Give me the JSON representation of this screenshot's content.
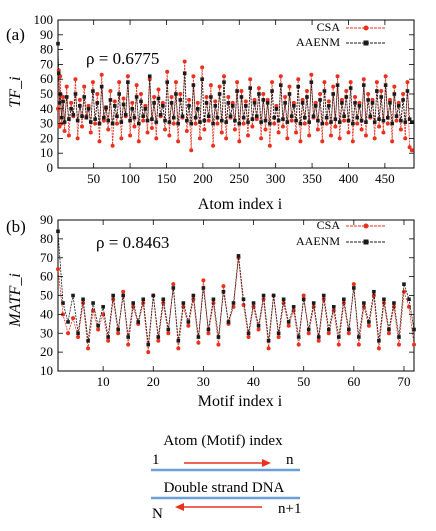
{
  "chart_data": [
    {
      "type": "line",
      "panel_label": "(a)",
      "annotation": "ρ = 0.6775",
      "xlabel": "Atom index i",
      "ylabel": "TF_i",
      "xlim": [
        1,
        490
      ],
      "ylim": [
        0,
        100
      ],
      "xticks": [
        50,
        100,
        150,
        200,
        250,
        300,
        350,
        400,
        450
      ],
      "yticks": [
        0,
        10,
        20,
        30,
        40,
        50,
        60,
        70,
        80,
        90,
        100
      ],
      "legend_position": "top-right",
      "series": [
        {
          "name": "CSA",
          "color": "#e8311f",
          "marker": "circle",
          "x": [
            1,
            2,
            3,
            4,
            6,
            8,
            10,
            13,
            16,
            19,
            22,
            25,
            28,
            31,
            34,
            37,
            40,
            43,
            46,
            49,
            52,
            55,
            58,
            61,
            64,
            67,
            70,
            73,
            76,
            79,
            82,
            85,
            88,
            91,
            94,
            97,
            100,
            103,
            106,
            109,
            112,
            115,
            118,
            121,
            124,
            127,
            130,
            133,
            136,
            139,
            142,
            145,
            148,
            151,
            154,
            157,
            160,
            163,
            166,
            169,
            172,
            175,
            178,
            181,
            184,
            187,
            190,
            193,
            196,
            199,
            202,
            205,
            208,
            211,
            214,
            217,
            220,
            223,
            226,
            229,
            232,
            235,
            238,
            241,
            244,
            247,
            250,
            253,
            256,
            259,
            262,
            265,
            268,
            271,
            274,
            277,
            280,
            283,
            286,
            289,
            292,
            295,
            298,
            301,
            304,
            307,
            310,
            313,
            316,
            319,
            322,
            325,
            328,
            331,
            334,
            337,
            340,
            343,
            346,
            349,
            352,
            355,
            358,
            361,
            364,
            367,
            370,
            373,
            376,
            379,
            382,
            385,
            388,
            391,
            394,
            397,
            400,
            403,
            406,
            409,
            412,
            415,
            418,
            421,
            424,
            427,
            430,
            433,
            436,
            439,
            442,
            445,
            448,
            451,
            454,
            457,
            460,
            463,
            466,
            469,
            472,
            475,
            478,
            481,
            484,
            487
          ],
          "values": [
            40,
            66,
            28,
            62,
            30,
            48,
            25,
            55,
            22,
            44,
            35,
            60,
            20,
            46,
            28,
            55,
            35,
            42,
            24,
            58,
            30,
            50,
            18,
            63,
            32,
            40,
            26,
            52,
            15,
            45,
            30,
            58,
            20,
            47,
            35,
            62,
            22,
            44,
            28,
            56,
            18,
            50,
            32,
            42,
            24,
            60,
            27,
            48,
            20,
            53,
            35,
            44,
            26,
            65,
            22,
            48,
            30,
            58,
            18,
            50,
            34,
            72,
            25,
            46,
            12,
            62,
            30,
            44,
            20,
            68,
            26,
            48,
            32,
            56,
            15,
            45,
            30,
            55,
            24,
            62,
            20,
            48,
            34,
            44,
            26,
            58,
            18,
            52,
            30,
            45,
            22,
            60,
            28,
            46,
            33,
            54,
            20,
            50,
            26,
            46,
            15,
            58,
            30,
            42,
            24,
            62,
            28,
            48,
            20,
            55,
            32,
            44,
            24,
            60,
            18,
            46,
            30,
            52,
            22,
            63,
            34,
            44,
            26,
            50,
            18,
            58,
            30,
            45,
            22,
            55,
            28,
            62,
            20,
            46,
            32,
            52,
            24,
            58,
            18,
            48,
            30,
            44,
            26,
            60,
            22,
            50,
            34,
            46,
            20,
            58,
            28,
            52,
            24,
            62,
            30,
            46,
            18,
            55,
            32,
            44,
            26,
            50,
            20,
            58,
            14,
            12
          ]
        },
        {
          "name": "AAENM",
          "color": "#1a1a1a",
          "marker": "square",
          "x": [
            1,
            2,
            3,
            4,
            6,
            8,
            10,
            13,
            16,
            19,
            22,
            25,
            28,
            31,
            34,
            37,
            40,
            43,
            46,
            49,
            52,
            55,
            58,
            61,
            64,
            67,
            70,
            73,
            76,
            79,
            82,
            85,
            88,
            91,
            94,
            97,
            100,
            103,
            106,
            109,
            112,
            115,
            118,
            121,
            124,
            127,
            130,
            133,
            136,
            139,
            142,
            145,
            148,
            151,
            154,
            157,
            160,
            163,
            166,
            169,
            172,
            175,
            178,
            181,
            184,
            187,
            190,
            193,
            196,
            199,
            202,
            205,
            208,
            211,
            214,
            217,
            220,
            223,
            226,
            229,
            232,
            235,
            238,
            241,
            244,
            247,
            250,
            253,
            256,
            259,
            262,
            265,
            268,
            271,
            274,
            277,
            280,
            283,
            286,
            289,
            292,
            295,
            298,
            301,
            304,
            307,
            310,
            313,
            316,
            319,
            322,
            325,
            328,
            331,
            334,
            337,
            340,
            343,
            346,
            349,
            352,
            355,
            358,
            361,
            364,
            367,
            370,
            373,
            376,
            379,
            382,
            385,
            388,
            391,
            394,
            397,
            400,
            403,
            406,
            409,
            412,
            415,
            418,
            421,
            424,
            427,
            430,
            433,
            436,
            439,
            442,
            445,
            448,
            451,
            454,
            457,
            460,
            463,
            466,
            469,
            472,
            475,
            478,
            481,
            484,
            487
          ],
          "values": [
            84,
            64,
            44,
            50,
            34,
            45,
            31,
            48,
            33,
            40,
            36,
            50,
            32,
            42,
            35,
            48,
            34,
            40,
            31,
            52,
            33,
            44,
            30,
            55,
            34,
            41,
            32,
            46,
            30,
            42,
            35,
            50,
            31,
            43,
            36,
            58,
            32,
            40,
            34,
            48,
            30,
            45,
            35,
            40,
            32,
            62,
            33,
            44,
            31,
            47,
            36,
            42,
            32,
            58,
            31,
            44,
            34,
            50,
            30,
            46,
            35,
            64,
            32,
            42,
            30,
            56,
            34,
            40,
            31,
            60,
            32,
            44,
            35,
            48,
            30,
            42,
            34,
            50,
            32,
            58,
            31,
            44,
            35,
            42,
            32,
            52,
            30,
            48,
            34,
            42,
            31,
            54,
            33,
            44,
            35,
            50,
            31,
            46,
            32,
            44,
            30,
            52,
            34,
            40,
            32,
            56,
            33,
            44,
            31,
            50,
            35,
            42,
            32,
            55,
            30,
            44,
            34,
            48,
            31,
            58,
            35,
            42,
            32,
            46,
            30,
            52,
            34,
            42,
            31,
            50,
            33,
            56,
            31,
            44,
            35,
            48,
            32,
            54,
            30,
            44,
            34,
            42,
            32,
            56,
            31,
            46,
            35,
            44,
            31,
            52,
            33,
            48,
            32,
            56,
            34,
            44,
            30,
            50,
            35,
            42,
            32,
            46,
            31,
            52,
            33,
            31
          ]
        }
      ]
    },
    {
      "type": "line",
      "panel_label": "(b)",
      "annotation": "ρ = 0.8463",
      "xlabel": "Motif index i",
      "ylabel": "MATF_i",
      "xlim": [
        1,
        72
      ],
      "ylim": [
        10,
        90
      ],
      "xticks": [
        10,
        20,
        30,
        40,
        50,
        60,
        70
      ],
      "yticks": [
        10,
        20,
        30,
        40,
        50,
        60,
        70,
        80,
        90
      ],
      "legend_position": "top-right",
      "series": [
        {
          "name": "CSA",
          "color": "#e8311f",
          "marker": "circle",
          "x": [
            1,
            2,
            3,
            4,
            5,
            6,
            7,
            8,
            9,
            10,
            11,
            12,
            13,
            14,
            15,
            16,
            17,
            18,
            19,
            20,
            21,
            22,
            23,
            24,
            25,
            26,
            27,
            28,
            29,
            30,
            31,
            32,
            33,
            34,
            35,
            36,
            37,
            38,
            39,
            40,
            41,
            42,
            43,
            44,
            45,
            46,
            47,
            48,
            49,
            50,
            51,
            52,
            53,
            54,
            55,
            56,
            57,
            58,
            59,
            60,
            61,
            62,
            63,
            64,
            65,
            66,
            67,
            68,
            69,
            70,
            71,
            72
          ],
          "values": [
            64,
            40,
            30,
            38,
            28,
            46,
            22,
            42,
            32,
            40,
            26,
            48,
            30,
            52,
            24,
            44,
            35,
            46,
            20,
            50,
            26,
            46,
            30,
            56,
            22,
            44,
            34,
            48,
            25,
            58,
            30,
            46,
            24,
            55,
            35,
            44,
            70,
            45,
            28,
            44,
            32,
            48,
            22,
            50,
            28,
            46,
            34,
            42,
            24,
            50,
            30,
            44,
            26,
            48,
            30,
            42,
            24,
            46,
            30,
            56,
            24,
            44,
            34,
            50,
            22,
            46,
            30,
            44,
            24,
            52,
            44,
            24
          ]
        },
        {
          "name": "AAENM",
          "color": "#1a1a1a",
          "marker": "square",
          "x": [
            1,
            2,
            3,
            4,
            5,
            6,
            7,
            8,
            9,
            10,
            11,
            12,
            13,
            14,
            15,
            16,
            17,
            18,
            19,
            20,
            21,
            22,
            23,
            24,
            25,
            26,
            27,
            28,
            29,
            30,
            31,
            32,
            33,
            34,
            35,
            36,
            37,
            38,
            39,
            40,
            41,
            42,
            43,
            44,
            45,
            46,
            47,
            48,
            49,
            50,
            51,
            52,
            53,
            54,
            55,
            56,
            57,
            58,
            59,
            60,
            61,
            62,
            63,
            64,
            65,
            66,
            67,
            68,
            69,
            70,
            71,
            72
          ],
          "values": [
            84,
            46,
            36,
            50,
            30,
            48,
            26,
            46,
            34,
            44,
            28,
            50,
            32,
            50,
            28,
            46,
            36,
            48,
            24,
            50,
            28,
            48,
            32,
            54,
            26,
            46,
            36,
            50,
            28,
            54,
            32,
            48,
            28,
            52,
            36,
            46,
            71,
            48,
            30,
            46,
            34,
            50,
            26,
            50,
            30,
            48,
            36,
            44,
            28,
            48,
            32,
            46,
            28,
            50,
            32,
            44,
            28,
            48,
            32,
            54,
            28,
            46,
            36,
            52,
            26,
            48,
            32,
            46,
            28,
            56,
            48,
            32
          ]
        }
      ]
    }
  ],
  "diagram": {
    "title": "Atom (Motif) index",
    "top_left": "1",
    "top_right": "n",
    "middle": "Double strand DNA",
    "bottom_left": "N",
    "bottom_right": "n+1",
    "arrow_color": "#e8311f",
    "strand_color": "#6a9fd8"
  }
}
